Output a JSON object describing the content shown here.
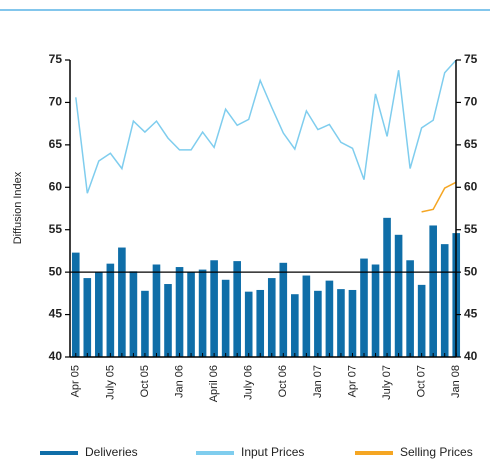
{
  "chart_data": {
    "type": "bar_line",
    "y_label": "Diffusion Index",
    "categories": [
      "Apr 05",
      null,
      null,
      "July 05",
      null,
      null,
      "Oct 05",
      null,
      null,
      "Jan 06",
      null,
      null,
      "April 06",
      null,
      null,
      "July 06",
      null,
      null,
      "Oct 06",
      null,
      null,
      "Jan 07",
      null,
      null,
      "Apr 07",
      null,
      null,
      "July 07",
      null,
      null,
      "Oct 07",
      null,
      null,
      "Jan 08"
    ],
    "series": [
      {
        "name": "Deliveries",
        "type": "bar",
        "color": "#0f6ea8",
        "values": [
          52.3,
          49.3,
          50.0,
          51.0,
          52.9,
          50.1,
          47.8,
          50.9,
          48.6,
          50.6,
          50.0,
          50.3,
          51.4,
          49.1,
          51.3,
          47.7,
          47.9,
          49.3,
          51.1,
          47.4,
          49.6,
          47.8,
          49.0,
          48.0,
          47.9,
          51.6,
          50.9,
          56.4,
          54.4,
          51.4,
          48.5,
          55.5,
          53.3,
          54.6
        ]
      },
      {
        "name": "Input Prices",
        "type": "line",
        "color": "#7fcdee",
        "values": [
          70.6,
          59.3,
          63.1,
          64.0,
          62.2,
          67.8,
          66.5,
          67.8,
          65.8,
          64.4,
          64.4,
          66.5,
          64.7,
          69.2,
          67.3,
          68.0,
          72.6,
          69.4,
          66.4,
          64.5,
          69.0,
          66.8,
          67.4,
          65.3,
          64.6,
          60.9,
          71.0,
          66.0,
          73.8,
          62.2,
          67.0,
          67.9,
          73.5,
          75.0
        ]
      },
      {
        "name": "Selling Prices",
        "type": "line",
        "color": "#f5a623",
        "values": [
          null,
          null,
          null,
          null,
          null,
          null,
          null,
          null,
          null,
          null,
          null,
          null,
          null,
          null,
          null,
          null,
          null,
          null,
          null,
          null,
          null,
          null,
          null,
          null,
          null,
          null,
          null,
          null,
          null,
          null,
          57.1,
          57.4,
          59.9,
          60.6
        ]
      }
    ],
    "ylim": [
      40,
      75
    ],
    "yticks": [
      40,
      45,
      50,
      55,
      60,
      65,
      70,
      75
    ],
    "y2lim": [
      40,
      75
    ],
    "y2ticks": [
      40,
      45,
      50,
      55,
      60,
      65,
      70,
      75
    ],
    "reference_line": 50
  }
}
